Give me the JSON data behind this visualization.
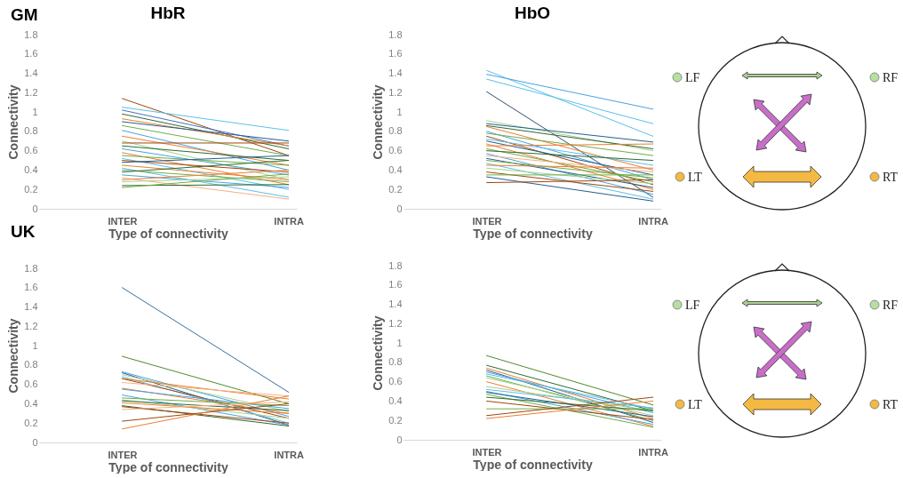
{
  "chart_data": [
    {
      "type": "line",
      "title": "HbR",
      "xlabel": "Type of connectivity",
      "ylabel": "Connectivity",
      "annotations": [
        "GM"
      ],
      "categories": [
        "INTER",
        "INTRA"
      ],
      "ylim": [
        0,
        1.8
      ],
      "yticks": [
        0,
        0.2,
        0.4,
        0.6,
        0.8,
        1,
        1.2,
        1.4,
        1.6,
        1.8
      ],
      "grid": false,
      "legend": false,
      "line_style": "solid",
      "series": [
        {
          "color": "#9e480e",
          "values": [
            1.14,
            0.55
          ]
        },
        {
          "color": "#5bc0eb",
          "values": [
            1.05,
            0.81
          ]
        },
        {
          "color": "#4472c4",
          "values": [
            1.02,
            0.65
          ]
        },
        {
          "color": "#2e6b30",
          "values": [
            0.98,
            0.62
          ]
        },
        {
          "color": "#ed7d31",
          "values": [
            0.93,
            0.65
          ]
        },
        {
          "color": "#255e91",
          "values": [
            0.9,
            0.7
          ]
        },
        {
          "color": "#70ad47",
          "values": [
            0.86,
            0.55
          ]
        },
        {
          "color": "#4aa3df",
          "values": [
            0.81,
            0.4
          ]
        },
        {
          "color": "#ed7d31",
          "values": [
            0.75,
            0.45
          ]
        },
        {
          "color": "#a9d18e",
          "values": [
            0.7,
            0.3
          ]
        },
        {
          "color": "#9e480e",
          "values": [
            0.68,
            0.68
          ]
        },
        {
          "color": "#2e6b30",
          "values": [
            0.65,
            0.5
          ]
        },
        {
          "color": "#4aa3df",
          "values": [
            0.62,
            0.35
          ]
        },
        {
          "color": "#ed7d31",
          "values": [
            0.58,
            0.25
          ]
        },
        {
          "color": "#70ad47",
          "values": [
            0.55,
            0.45
          ]
        },
        {
          "color": "#5bc0eb",
          "values": [
            0.52,
            0.2
          ]
        },
        {
          "color": "#9e480e",
          "values": [
            0.5,
            0.38
          ]
        },
        {
          "color": "#255e91",
          "values": [
            0.48,
            0.55
          ]
        },
        {
          "color": "#ed7d31",
          "values": [
            0.45,
            0.3
          ]
        },
        {
          "color": "#5bc0eb",
          "values": [
            0.42,
            0.12
          ]
        },
        {
          "color": "#70ad47",
          "values": [
            0.4,
            0.28
          ]
        },
        {
          "color": "#2e6b30",
          "values": [
            0.38,
            0.5
          ]
        },
        {
          "color": "#4aa3df",
          "values": [
            0.35,
            0.22
          ]
        },
        {
          "color": "#f4b183",
          "values": [
            0.32,
            0.1
          ]
        },
        {
          "color": "#ed7d31",
          "values": [
            0.3,
            0.4
          ]
        },
        {
          "color": "#a9d18e",
          "values": [
            0.28,
            0.33
          ]
        },
        {
          "color": "#2e6b30",
          "values": [
            0.24,
            0.25
          ]
        },
        {
          "color": "#70ad47",
          "values": [
            0.22,
            0.36
          ]
        }
      ]
    },
    {
      "type": "line",
      "title": "HbO",
      "xlabel": "Type of connectivity",
      "ylabel": "Connectivity",
      "categories": [
        "INTER",
        "INTRA"
      ],
      "ylim": [
        0,
        1.8
      ],
      "yticks": [
        0,
        0.2,
        0.4,
        0.6,
        0.8,
        1,
        1.2,
        1.4,
        1.6,
        1.8
      ],
      "grid": false,
      "legend": false,
      "line_style": "solid",
      "series": [
        {
          "color": "#5bc0eb",
          "values": [
            1.43,
            0.75
          ]
        },
        {
          "color": "#4aa3df",
          "values": [
            1.39,
            1.03
          ]
        },
        {
          "color": "#5bc0eb",
          "values": [
            1.34,
            0.88
          ]
        },
        {
          "color": "#2f4f6f",
          "values": [
            1.21,
            0.12
          ]
        },
        {
          "color": "#a9d18e",
          "values": [
            0.91,
            0.6
          ]
        },
        {
          "color": "#255e91",
          "values": [
            0.88,
            0.69
          ]
        },
        {
          "color": "#2e6b30",
          "values": [
            0.86,
            0.62
          ]
        },
        {
          "color": "#ed7d31",
          "values": [
            0.85,
            0.4
          ]
        },
        {
          "color": "#4aa3df",
          "values": [
            0.8,
            0.3
          ]
        },
        {
          "color": "#70ad47",
          "values": [
            0.78,
            0.55
          ]
        },
        {
          "color": "#9e480e",
          "values": [
            0.75,
            0.25
          ]
        },
        {
          "color": "#5bc0eb",
          "values": [
            0.72,
            0.45
          ]
        },
        {
          "color": "#255e91",
          "values": [
            0.7,
            0.35
          ]
        },
        {
          "color": "#ed7d31",
          "values": [
            0.67,
            0.2
          ]
        },
        {
          "color": "#ed7d31",
          "values": [
            0.65,
            0.67
          ]
        },
        {
          "color": "#70ad47",
          "values": [
            0.62,
            0.28
          ]
        },
        {
          "color": "#2e6b30",
          "values": [
            0.6,
            0.5
          ]
        },
        {
          "color": "#4aa3df",
          "values": [
            0.57,
            0.15
          ]
        },
        {
          "color": "#f4b183",
          "values": [
            0.55,
            0.38
          ]
        },
        {
          "color": "#255e91",
          "values": [
            0.52,
            0.22
          ]
        },
        {
          "color": "#70ad47",
          "values": [
            0.5,
            0.32
          ]
        },
        {
          "color": "#5bc0eb",
          "values": [
            0.47,
            0.1
          ]
        },
        {
          "color": "#ed7d31",
          "values": [
            0.45,
            0.42
          ]
        },
        {
          "color": "#a9d18e",
          "values": [
            0.42,
            0.26
          ]
        },
        {
          "color": "#9e480e",
          "values": [
            0.38,
            0.18
          ]
        },
        {
          "color": "#70ad47",
          "values": [
            0.35,
            0.35
          ]
        },
        {
          "color": "#255e91",
          "values": [
            0.33,
            0.08
          ]
        },
        {
          "color": "#9e480e",
          "values": [
            0.27,
            0.3
          ]
        }
      ]
    },
    {
      "type": "other",
      "annotations": [
        "LF",
        "RF",
        "LT",
        "RT"
      ]
    },
    {
      "type": "line",
      "xlabel": "Type of connectivity",
      "ylabel": "Connectivity",
      "annotations": [
        "UK"
      ],
      "categories": [
        "INTER",
        "INTRA"
      ],
      "ylim": [
        0,
        1.8
      ],
      "yticks": [
        0,
        0.2,
        0.4,
        0.6,
        0.8,
        1,
        1.2,
        1.4,
        1.6,
        1.8
      ],
      "grid": false,
      "legend": false,
      "line_style": "solid",
      "series": [
        {
          "color": "#3a6e9e",
          "values": [
            1.6,
            0.52
          ]
        },
        {
          "color": "#4f8a2f",
          "values": [
            0.89,
            0.4
          ]
        },
        {
          "color": "#4aa3df",
          "values": [
            0.73,
            0.27
          ]
        },
        {
          "color": "#255e91",
          "values": [
            0.72,
            0.18
          ]
        },
        {
          "color": "#a9d18e",
          "values": [
            0.7,
            0.32
          ]
        },
        {
          "color": "#5bc0eb",
          "values": [
            0.68,
            0.2
          ]
        },
        {
          "color": "#ed7d31",
          "values": [
            0.66,
            0.45
          ]
        },
        {
          "color": "#9e480e",
          "values": [
            0.66,
            0.25
          ]
        },
        {
          "color": "#f4b183",
          "values": [
            0.62,
            0.48
          ]
        },
        {
          "color": "#ed7d31",
          "values": [
            0.56,
            0.3
          ]
        },
        {
          "color": "#4aa3df",
          "values": [
            0.55,
            0.35
          ]
        },
        {
          "color": "#4aa3df",
          "values": [
            0.49,
            0.18
          ]
        },
        {
          "color": "#70ad47",
          "values": [
            0.46,
            0.38
          ]
        },
        {
          "color": "#a9d18e",
          "values": [
            0.44,
            0.25
          ]
        },
        {
          "color": "#2e6b30",
          "values": [
            0.43,
            0.33
          ]
        },
        {
          "color": "#ed7d31",
          "values": [
            0.41,
            0.3
          ]
        },
        {
          "color": "#2e6b30",
          "values": [
            0.38,
            0.17
          ]
        },
        {
          "color": "#9e480e",
          "values": [
            0.37,
            0.2
          ]
        },
        {
          "color": "#f4b183",
          "values": [
            0.34,
            0.42
          ]
        },
        {
          "color": "#9e480e",
          "values": [
            0.22,
            0.4
          ]
        },
        {
          "color": "#ed7d31",
          "values": [
            0.14,
            0.48
          ]
        }
      ]
    },
    {
      "type": "line",
      "xlabel": "Type of connectivity",
      "ylabel": "Connectivity",
      "categories": [
        "INTER",
        "INTRA"
      ],
      "ylim": [
        0,
        1.8
      ],
      "yticks": [
        0,
        0.2,
        0.4,
        0.6,
        0.8,
        1,
        1.2,
        1.4,
        1.6,
        1.8
      ],
      "grid": false,
      "legend": false,
      "line_style": "solid",
      "series": [
        {
          "color": "#4f8a2f",
          "values": [
            0.87,
            0.36
          ]
        },
        {
          "color": "#2e6b30",
          "values": [
            0.77,
            0.3
          ]
        },
        {
          "color": "#ed7d31",
          "values": [
            0.74,
            0.22
          ]
        },
        {
          "color": "#255e91",
          "values": [
            0.72,
            0.18
          ]
        },
        {
          "color": "#4aa3df",
          "values": [
            0.7,
            0.28
          ]
        },
        {
          "color": "#5bc0eb",
          "values": [
            0.68,
            0.32
          ]
        },
        {
          "color": "#70ad47",
          "values": [
            0.66,
            0.2
          ]
        },
        {
          "color": "#a9d18e",
          "values": [
            0.64,
            0.25
          ]
        },
        {
          "color": "#ed7d31",
          "values": [
            0.6,
            0.14
          ]
        },
        {
          "color": "#a9d18e",
          "values": [
            0.55,
            0.3
          ]
        },
        {
          "color": "#5bc0eb",
          "values": [
            0.52,
            0.33
          ]
        },
        {
          "color": "#4aa3df",
          "values": [
            0.5,
            0.16
          ]
        },
        {
          "color": "#255e91",
          "values": [
            0.49,
            0.24
          ]
        },
        {
          "color": "#70ad47",
          "values": [
            0.47,
            0.13
          ]
        },
        {
          "color": "#2e6b30",
          "values": [
            0.44,
            0.3
          ]
        },
        {
          "color": "#9e480e",
          "values": [
            0.4,
            0.21
          ]
        },
        {
          "color": "#70ad47",
          "values": [
            0.32,
            0.32
          ]
        },
        {
          "color": "#9e480e",
          "values": [
            0.25,
            0.44
          ]
        },
        {
          "color": "#ed7d31",
          "values": [
            0.22,
            0.4
          ]
        }
      ]
    },
    {
      "type": "other",
      "annotations": [
        "LF",
        "RF",
        "LT",
        "RT"
      ]
    }
  ]
}
